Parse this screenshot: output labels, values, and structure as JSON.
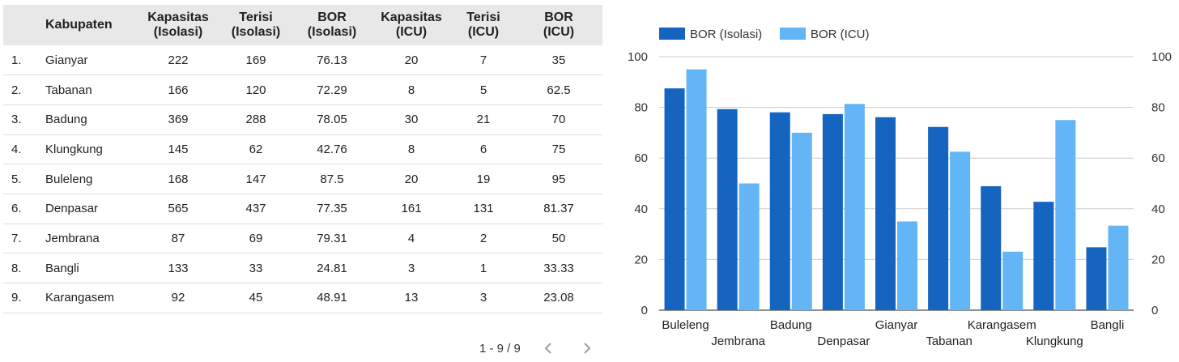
{
  "table": {
    "headers": [
      {
        "key": "idx",
        "line1": "",
        "line2": ""
      },
      {
        "key": "name",
        "line1": "Kabupaten",
        "line2": ""
      },
      {
        "key": "kap_iso",
        "line1": "Kapasitas",
        "line2": "(Isolasi)"
      },
      {
        "key": "ter_iso",
        "line1": "Terisi",
        "line2": "(Isolasi)"
      },
      {
        "key": "bor_iso",
        "line1": "BOR",
        "line2": "(Isolasi)"
      },
      {
        "key": "kap_icu",
        "line1": "Kapasitas",
        "line2": "(ICU)"
      },
      {
        "key": "ter_icu",
        "line1": "Terisi",
        "line2": "(ICU)"
      },
      {
        "key": "bor_icu",
        "line1": "BOR",
        "line2": "(ICU)"
      }
    ],
    "rows": [
      {
        "idx": "1.",
        "name": "Gianyar",
        "kap_iso": "222",
        "ter_iso": "169",
        "bor_iso": "76.13",
        "kap_icu": "20",
        "ter_icu": "7",
        "bor_icu": "35"
      },
      {
        "idx": "2.",
        "name": "Tabanan",
        "kap_iso": "166",
        "ter_iso": "120",
        "bor_iso": "72.29",
        "kap_icu": "8",
        "ter_icu": "5",
        "bor_icu": "62.5"
      },
      {
        "idx": "3.",
        "name": "Badung",
        "kap_iso": "369",
        "ter_iso": "288",
        "bor_iso": "78.05",
        "kap_icu": "30",
        "ter_icu": "21",
        "bor_icu": "70"
      },
      {
        "idx": "4.",
        "name": "Klungkung",
        "kap_iso": "145",
        "ter_iso": "62",
        "bor_iso": "42.76",
        "kap_icu": "8",
        "ter_icu": "6",
        "bor_icu": "75"
      },
      {
        "idx": "5.",
        "name": "Buleleng",
        "kap_iso": "168",
        "ter_iso": "147",
        "bor_iso": "87.5",
        "kap_icu": "20",
        "ter_icu": "19",
        "bor_icu": "95"
      },
      {
        "idx": "6.",
        "name": "Denpasar",
        "kap_iso": "565",
        "ter_iso": "437",
        "bor_iso": "77.35",
        "kap_icu": "161",
        "ter_icu": "131",
        "bor_icu": "81.37"
      },
      {
        "idx": "7.",
        "name": "Jembrana",
        "kap_iso": "87",
        "ter_iso": "69",
        "bor_iso": "79.31",
        "kap_icu": "4",
        "ter_icu": "2",
        "bor_icu": "50"
      },
      {
        "idx": "8.",
        "name": "Bangli",
        "kap_iso": "133",
        "ter_iso": "33",
        "bor_iso": "24.81",
        "kap_icu": "3",
        "ter_icu": "1",
        "bor_icu": "33.33"
      },
      {
        "idx": "9.",
        "name": "Karangasem",
        "kap_iso": "92",
        "ter_iso": "45",
        "bor_iso": "48.91",
        "kap_icu": "13",
        "ter_icu": "3",
        "bor_icu": "23.08"
      }
    ]
  },
  "pagination": {
    "text": "1 - 9 / 9",
    "prev_icon": "chevron-left-icon",
    "next_icon": "chevron-right-icon"
  },
  "chart_data": {
    "type": "bar",
    "title": "",
    "xlabel": "",
    "ylabel": "",
    "categories": [
      "Buleleng",
      "Jembrana",
      "Badung",
      "Denpasar",
      "Gianyar",
      "Tabanan",
      "Karangasem",
      "Klungkung",
      "Bangli"
    ],
    "series": [
      {
        "name": "BOR (Isolasi)",
        "color": "#1565c0",
        "values": [
          87.5,
          79.31,
          78.05,
          77.35,
          76.13,
          72.29,
          48.91,
          42.76,
          24.81
        ]
      },
      {
        "name": "BOR (ICU)",
        "color": "#64b5f6",
        "values": [
          95,
          50,
          70,
          81.37,
          35,
          62.5,
          23.08,
          75,
          33.33
        ]
      }
    ],
    "ylim": [
      0,
      100
    ],
    "yticks": [
      0,
      20,
      40,
      60,
      80,
      100
    ],
    "y_right_ticks": [
      0,
      20,
      40,
      60,
      80,
      100
    ],
    "grid": true,
    "legend": "top-left"
  }
}
